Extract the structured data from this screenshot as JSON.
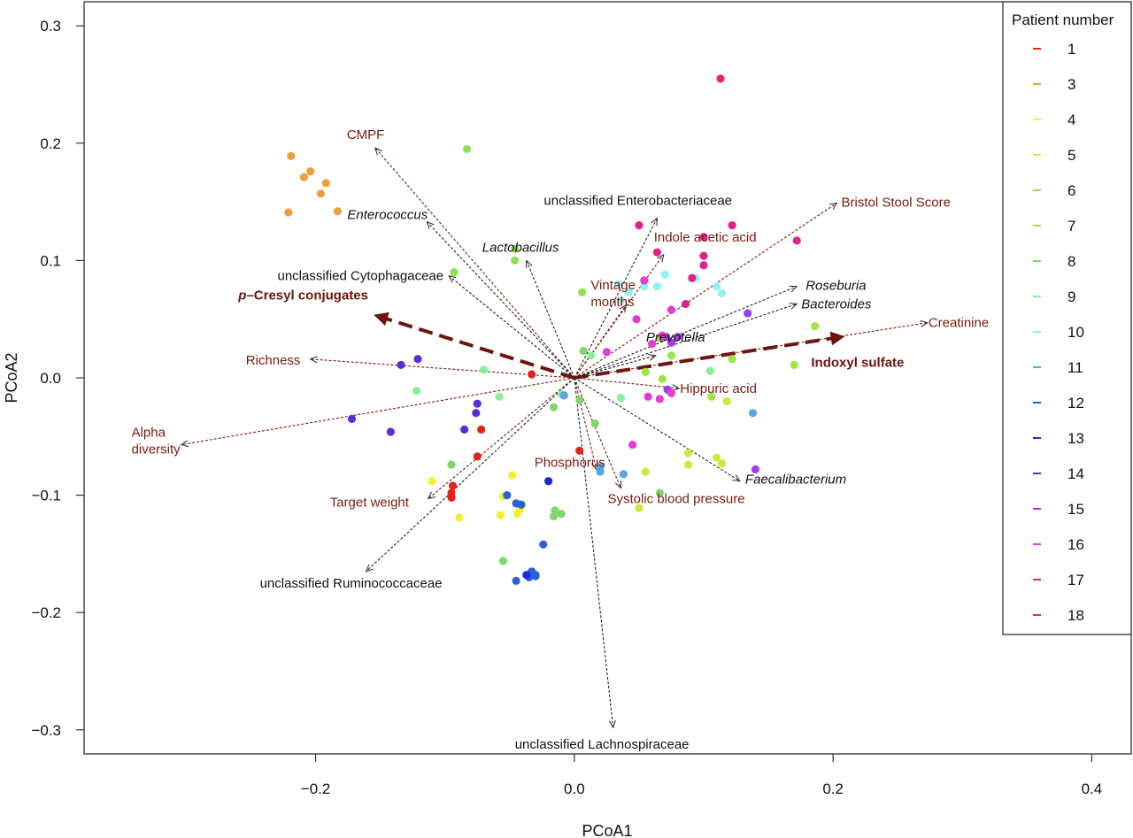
{
  "chart_data": {
    "type": "scatter",
    "xlabel": "PCoA1",
    "ylabel": "PCoA2",
    "xlim": [
      -0.379,
      0.4305
    ],
    "ylim": [
      -0.3205,
      0.3205
    ],
    "x_ticks": [
      -0.2,
      0.0,
      0.2,
      0.4
    ],
    "x_tick_labels": [
      "−0.2",
      "0.0",
      "0.2",
      "0.4"
    ],
    "y_ticks": [
      0.3,
      0.2,
      0.1,
      0.0,
      -0.1,
      -0.2,
      -0.3
    ],
    "y_tick_labels": [
      "0.3",
      "0.2",
      "0.1",
      "0.0",
      "−0.1",
      "−0.2",
      "−0.3"
    ],
    "grid": false,
    "legend": {
      "title": "Patient number",
      "placement": "top-right",
      "entries": [
        {
          "name": "1",
          "color": "#e2231a"
        },
        {
          "name": "3",
          "color": "#e9a23b"
        },
        {
          "name": "4",
          "color": "#f5f02c"
        },
        {
          "name": "5",
          "color": "#c8ec3c"
        },
        {
          "name": "6",
          "color": "#8fe055"
        },
        {
          "name": "7",
          "color": "#9ce645"
        },
        {
          "name": "8",
          "color": "#7ed86a"
        },
        {
          "name": "9",
          "color": "#88f09a"
        },
        {
          "name": "10",
          "color": "#8ef3f0"
        },
        {
          "name": "11",
          "color": "#5aa5e6"
        },
        {
          "name": "12",
          "color": "#2b5fdc"
        },
        {
          "name": "13",
          "color": "#1a2cd8"
        },
        {
          "name": "14",
          "color": "#5a2dd8"
        },
        {
          "name": "15",
          "color": "#a23cf0"
        },
        {
          "name": "16",
          "color": "#e23cd2"
        },
        {
          "name": "17",
          "color": "#e0238a"
        },
        {
          "name": "18",
          "color": "#e8285a"
        }
      ]
    },
    "series": [
      {
        "name": "1",
        "color": "#e2231a",
        "points": [
          [
            -0.033,
            0.003
          ],
          [
            -0.072,
            -0.044
          ],
          [
            -0.075,
            -0.067
          ],
          [
            -0.094,
            -0.092
          ],
          [
            -0.095,
            -0.098
          ],
          [
            -0.095,
            -0.102
          ],
          [
            0.004,
            -0.062
          ]
        ]
      },
      {
        "name": "3",
        "color": "#e9a23b",
        "points": [
          [
            -0.219,
            0.189
          ],
          [
            -0.204,
            0.176
          ],
          [
            -0.209,
            0.171
          ],
          [
            -0.192,
            0.166
          ],
          [
            -0.196,
            0.157
          ],
          [
            -0.183,
            0.142
          ],
          [
            -0.221,
            0.141
          ]
        ]
      },
      {
        "name": "4",
        "color": "#f5f02c",
        "points": [
          [
            -0.11,
            -0.088
          ],
          [
            -0.048,
            -0.083
          ],
          [
            -0.055,
            -0.101
          ],
          [
            -0.042,
            -0.112
          ],
          [
            -0.057,
            -0.117
          ],
          [
            -0.044,
            -0.116
          ],
          [
            -0.089,
            -0.119
          ]
        ]
      },
      {
        "name": "5",
        "color": "#c8ec3c",
        "points": [
          [
            0.05,
            -0.111
          ],
          [
            0.088,
            -0.064
          ],
          [
            0.11,
            -0.068
          ],
          [
            0.114,
            -0.073
          ],
          [
            0.088,
            -0.074
          ],
          [
            0.118,
            -0.02
          ],
          [
            0.055,
            -0.08
          ],
          [
            0.02,
            -0.079
          ]
        ]
      },
      {
        "name": "6",
        "color": "#8fe055",
        "points": [
          [
            -0.083,
            0.195
          ],
          [
            -0.046,
            0.11
          ],
          [
            -0.046,
            0.1
          ],
          [
            0.006,
            0.073
          ],
          [
            -0.093,
            0.09
          ]
        ]
      },
      {
        "name": "7",
        "color": "#9ce645",
        "points": [
          [
            0.17,
            0.011
          ],
          [
            0.066,
            0.034
          ],
          [
            0.075,
            0.019
          ],
          [
            0.122,
            0.016
          ],
          [
            0.055,
            0.005
          ],
          [
            0.068,
            -0.001
          ],
          [
            0.106,
            -0.016
          ],
          [
            0.186,
            0.044
          ]
        ]
      },
      {
        "name": "8",
        "color": "#7ed86a",
        "points": [
          [
            -0.015,
            -0.113
          ],
          [
            -0.01,
            -0.116
          ],
          [
            -0.016,
            -0.118
          ],
          [
            0.016,
            -0.039
          ],
          [
            -0.016,
            -0.025
          ],
          [
            -0.055,
            -0.156
          ],
          [
            0.066,
            -0.098
          ],
          [
            0.004,
            -0.019
          ],
          [
            0.007,
            0.023
          ],
          [
            -0.095,
            -0.074
          ]
        ]
      },
      {
        "name": "9",
        "color": "#88f09a",
        "points": [
          [
            -0.122,
            -0.011
          ],
          [
            -0.07,
            0.007
          ],
          [
            -0.058,
            -0.016
          ],
          [
            0.036,
            -0.017
          ],
          [
            0.105,
            0.006
          ],
          [
            0.013,
            0.019
          ],
          [
            -0.01,
            -0.014
          ]
        ]
      },
      {
        "name": "10",
        "color": "#8ef3f0",
        "points": [
          [
            0.034,
            0.08
          ],
          [
            0.054,
            0.078
          ],
          [
            0.064,
            0.078
          ],
          [
            0.07,
            0.088
          ],
          [
            0.094,
            0.085
          ],
          [
            0.11,
            0.078
          ],
          [
            0.114,
            0.072
          ],
          [
            0.042,
            0.073
          ],
          [
            0.036,
            0.066
          ]
        ]
      },
      {
        "name": "11",
        "color": "#5aa5e6",
        "points": [
          [
            -0.008,
            -0.015
          ],
          [
            0.02,
            -0.076
          ],
          [
            0.02,
            -0.08
          ],
          [
            0.038,
            -0.082
          ],
          [
            -0.02,
            -0.088
          ],
          [
            0.138,
            -0.03
          ]
        ]
      },
      {
        "name": "12",
        "color": "#2b5fdc",
        "points": [
          [
            -0.041,
            -0.108
          ],
          [
            -0.052,
            -0.1
          ],
          [
            -0.045,
            -0.107
          ],
          [
            -0.024,
            -0.142
          ],
          [
            -0.033,
            -0.165
          ],
          [
            -0.03,
            -0.168
          ],
          [
            -0.035,
            -0.17
          ],
          [
            -0.045,
            -0.173
          ],
          [
            -0.03,
            -0.169
          ]
        ]
      },
      {
        "name": "13",
        "color": "#1a2cd8",
        "points": [
          [
            -0.037,
            -0.168
          ],
          [
            -0.02,
            -0.088
          ]
        ]
      },
      {
        "name": "14",
        "color": "#5a2dd8",
        "points": [
          [
            -0.134,
            0.011
          ],
          [
            -0.121,
            0.016
          ],
          [
            -0.085,
            -0.044
          ],
          [
            -0.142,
            -0.046
          ],
          [
            -0.172,
            -0.035
          ],
          [
            -0.075,
            -0.022
          ],
          [
            -0.076,
            -0.03
          ]
        ]
      },
      {
        "name": "15",
        "color": "#a23cf0",
        "points": [
          [
            0.134,
            0.055
          ],
          [
            0.075,
            0.03
          ],
          [
            0.071,
            0.035
          ],
          [
            0.08,
            0.035
          ],
          [
            0.14,
            -0.078
          ],
          [
            0.072,
            -0.01
          ]
        ]
      },
      {
        "name": "16",
        "color": "#e23cd2",
        "points": [
          [
            0.048,
            0.05
          ],
          [
            0.054,
            0.083
          ],
          [
            0.068,
            0.036
          ],
          [
            0.06,
            0.029
          ],
          [
            0.075,
            0.058
          ],
          [
            0.057,
            -0.016
          ],
          [
            0.066,
            -0.018
          ],
          [
            0.045,
            -0.057
          ],
          [
            0.075,
            -0.013
          ],
          [
            0.025,
            0.022
          ]
        ]
      },
      {
        "name": "17",
        "color": "#e0238a",
        "points": [
          [
            0.05,
            0.13
          ],
          [
            0.064,
            0.107
          ],
          [
            0.122,
            0.13
          ],
          [
            0.1,
            0.12
          ],
          [
            0.1,
            0.104
          ],
          [
            0.1,
            0.096
          ],
          [
            0.091,
            0.085
          ],
          [
            0.086,
            0.063
          ],
          [
            0.172,
            0.117
          ]
        ]
      },
      {
        "name": "18",
        "color": "#e8285a",
        "points": [
          [
            0.113,
            0.255
          ]
        ]
      }
    ],
    "vectors": [
      {
        "label": "CMPF",
        "x": -0.154,
        "y": 0.196,
        "color": "#7a1a10",
        "bold": false,
        "italic": false
      },
      {
        "label": "Enterococcus",
        "x": -0.114,
        "y": 0.133,
        "color": "#111111",
        "bold": false,
        "italic": true
      },
      {
        "label": "Lactobacillus",
        "x": -0.037,
        "y": 0.1,
        "color": "#111111",
        "bold": false,
        "italic": true
      },
      {
        "label": "unclassified Cytophagaceae",
        "x": -0.097,
        "y": 0.087,
        "color": "#111111",
        "bold": false,
        "italic": false
      },
      {
        "label": "p–Cresyl conjugates",
        "x": -0.153,
        "y": 0.053,
        "color": "#6b1410",
        "bold": true,
        "italic": false
      },
      {
        "label": "Richness",
        "x": -0.204,
        "y": 0.016,
        "color": "#7a1a10",
        "bold": false,
        "italic": false
      },
      {
        "label": "Alpha diversity",
        "x": -0.304,
        "y": -0.057,
        "color": "#7a1a10",
        "bold": false,
        "italic": false
      },
      {
        "label": "Target weight",
        "x": -0.113,
        "y": -0.103,
        "color": "#7a1a10",
        "bold": false,
        "italic": false
      },
      {
        "label": "unclassified Ruminococcaceae",
        "x": -0.161,
        "y": -0.165,
        "color": "#111111",
        "bold": false,
        "italic": false
      },
      {
        "label": "unclassified Lachnospiraceae",
        "x": 0.03,
        "y": -0.298,
        "color": "#111111",
        "bold": false,
        "italic": false
      },
      {
        "label": "Phosphorus",
        "x": 0.017,
        "y": -0.078,
        "color": "#7a1a10",
        "bold": false,
        "italic": false
      },
      {
        "label": "Systolic blood pressure",
        "x": 0.036,
        "y": -0.094,
        "color": "#7a1a10",
        "bold": false,
        "italic": false
      },
      {
        "label": "Faecalibacterium",
        "x": 0.128,
        "y": -0.088,
        "color": "#111111",
        "bold": false,
        "italic": true
      },
      {
        "label": "Hippuric acid",
        "x": 0.081,
        "y": -0.009,
        "color": "#7a1a10",
        "bold": false,
        "italic": false
      },
      {
        "label": "Indoxyl sulfate",
        "x": 0.207,
        "y": 0.035,
        "color": "#6b1410",
        "bold": true,
        "italic": false
      },
      {
        "label": "Prevotella",
        "x": 0.063,
        "y": 0.019,
        "color": "#111111",
        "bold": false,
        "italic": true
      },
      {
        "label": "Creatinine",
        "x": 0.273,
        "y": 0.047,
        "color": "#7a1a10",
        "bold": false,
        "italic": false
      },
      {
        "label": "Bacteroides",
        "x": 0.172,
        "y": 0.063,
        "color": "#111111",
        "bold": false,
        "italic": true
      },
      {
        "label": "Roseburia",
        "x": 0.172,
        "y": 0.078,
        "color": "#111111",
        "bold": false,
        "italic": true
      },
      {
        "label": "Bristol Stool Score",
        "x": 0.203,
        "y": 0.149,
        "color": "#7a1a10",
        "bold": false,
        "italic": false
      },
      {
        "label": "Indole acetic acid",
        "x": 0.069,
        "y": 0.105,
        "color": "#7a1a10",
        "bold": false,
        "italic": false
      },
      {
        "label": "unclassified Enterobacteriaceae",
        "x": 0.064,
        "y": 0.136,
        "color": "#111111",
        "bold": false,
        "italic": false
      },
      {
        "label": "Vintage months",
        "x": 0.04,
        "y": 0.062,
        "color": "#7a1a10",
        "bold": false,
        "italic": false
      }
    ]
  }
}
